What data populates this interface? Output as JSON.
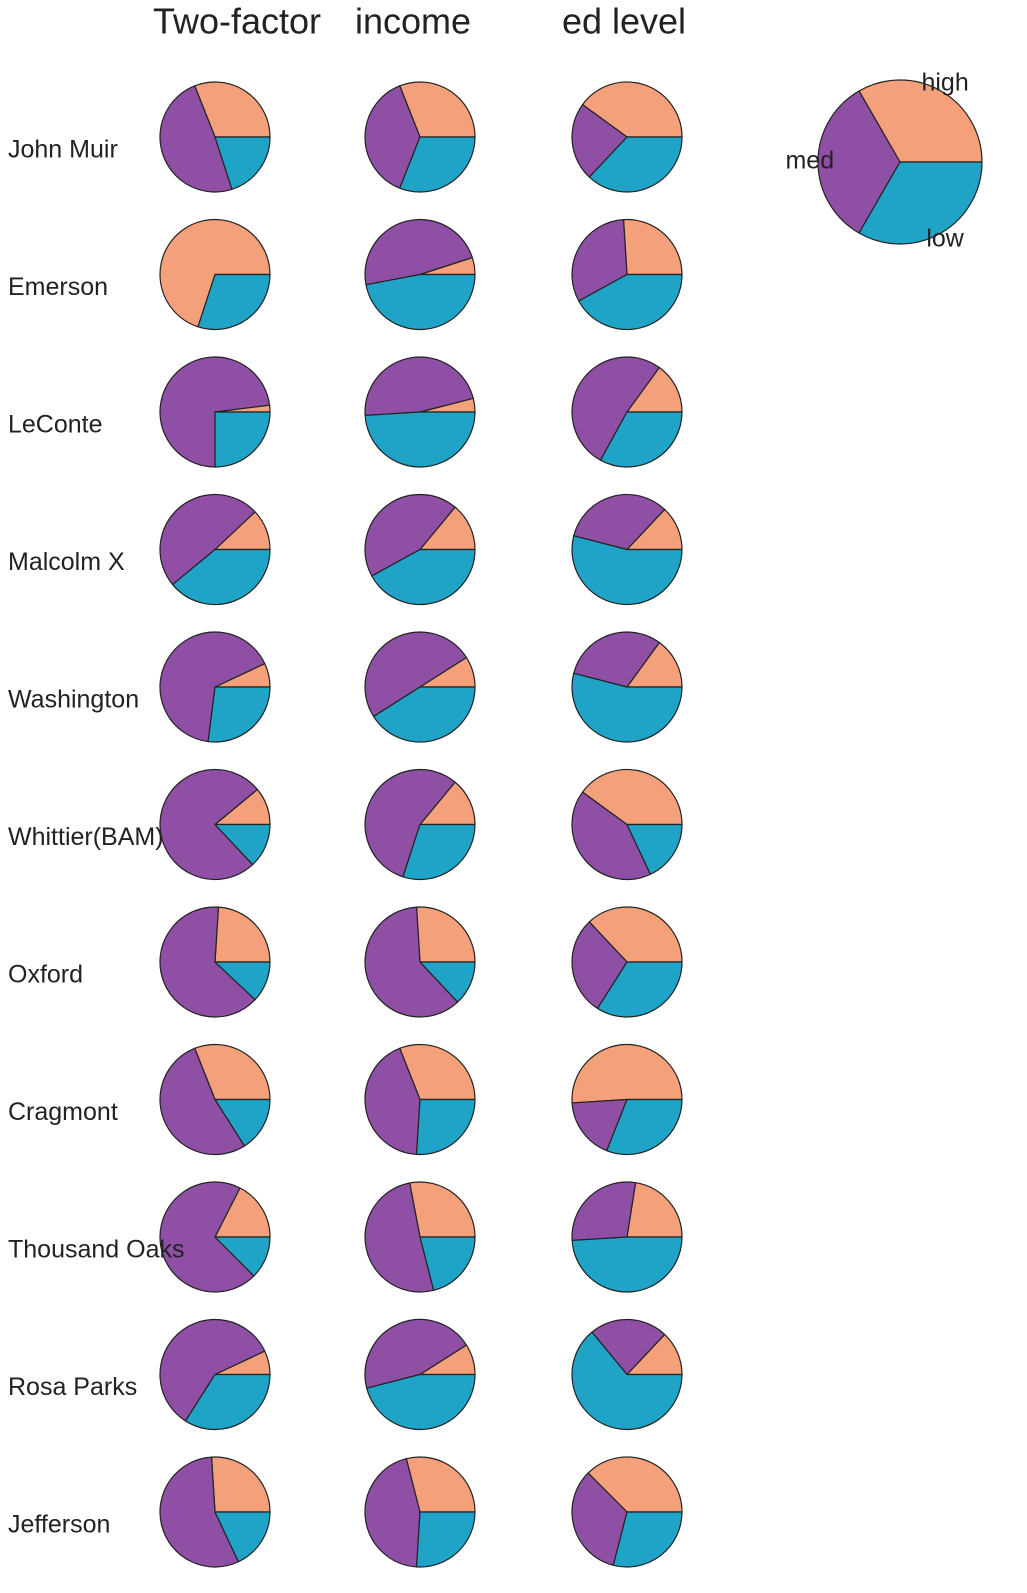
{
  "chart_data": {
    "type": "pie",
    "columns": [
      "Two-factor",
      "income",
      "ed level"
    ],
    "rows": [
      "John Muir",
      "Emerson",
      "LeConte",
      "Malcolm X",
      "Washington",
      "Whittier(BAM)",
      "Oxford",
      "Cragmont",
      "Thousand Oaks",
      "Rosa Parks",
      "Jefferson"
    ],
    "colors": [
      "#f4a07a",
      "#8e4fa5",
      "#1fa3c6"
    ],
    "values": [
      [
        [
          31,
          49,
          20
        ],
        [
          31,
          38,
          31
        ],
        [
          40,
          23,
          37
        ]
      ],
      [
        [
          70,
          0,
          30
        ],
        [
          5,
          48,
          47
        ],
        [
          26,
          32,
          42
        ]
      ],
      [
        [
          2,
          73,
          25
        ],
        [
          4,
          47,
          49
        ],
        [
          15,
          52,
          33
        ]
      ],
      [
        [
          12,
          49,
          39
        ],
        [
          14,
          44,
          42
        ],
        [
          13,
          33,
          54
        ]
      ],
      [
        [
          7,
          66,
          27
        ],
        [
          9,
          50,
          41
        ],
        [
          15,
          31,
          54
        ]
      ],
      [
        [
          11,
          76,
          13
        ],
        [
          14,
          56,
          30
        ],
        [
          40,
          42,
          18
        ]
      ],
      [
        [
          24,
          64,
          12
        ],
        [
          26,
          61,
          13
        ],
        [
          37,
          29,
          34
        ]
      ],
      [
        [
          31,
          53,
          16
        ],
        [
          31,
          43,
          26
        ],
        [
          51,
          18,
          31
        ]
      ],
      [
        [
          17.5,
          70,
          12.5
        ],
        [
          28,
          51,
          21
        ],
        [
          22.5,
          28.5,
          49
        ]
      ],
      [
        [
          7,
          59,
          34
        ],
        [
          9,
          45,
          46
        ],
        [
          13,
          23,
          64
        ]
      ],
      [
        [
          26,
          56,
          18
        ],
        [
          29,
          45,
          26
        ],
        [
          37.5,
          33.5,
          29
        ]
      ]
    ],
    "legend": {
      "labels": [
        "high",
        "med",
        "low"
      ],
      "values": [
        33.3,
        33.3,
        33.3
      ]
    }
  }
}
